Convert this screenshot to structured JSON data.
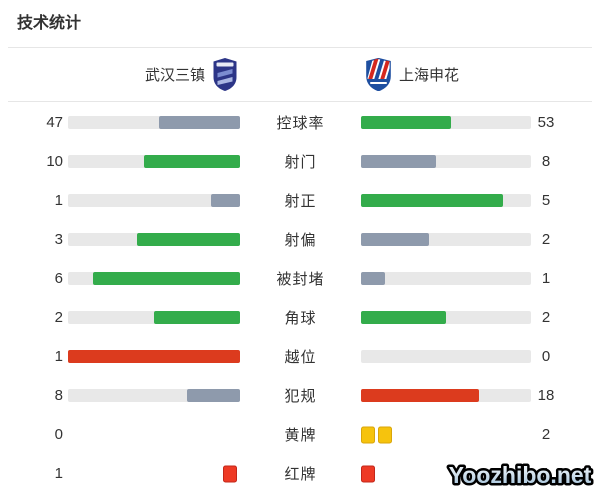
{
  "title": "技术统计",
  "teams": {
    "home": {
      "name": "武汉三镇",
      "logo_icon": "wuhan-three-towns-crest"
    },
    "away": {
      "name": "上海申花",
      "logo_icon": "shanghai-shenhua-crest"
    }
  },
  "colors": {
    "green": "#33ac4b",
    "gray": "#8e9aac",
    "red": "#dc3b1e",
    "track": "#e8e8e8",
    "yellow_card": "#f6c30d",
    "yellow_card_border": "#d9a50a",
    "red_card": "#ee3a25",
    "red_card_border": "#c2271a",
    "text": "#333333",
    "divider": "#e6e6e6"
  },
  "chart_data": {
    "type": "bar",
    "title": "技术统计",
    "categories": [
      "控球率",
      "射门",
      "射正",
      "射偏",
      "被封堵",
      "角球",
      "越位",
      "犯规",
      "黄牌",
      "红牌"
    ],
    "series": [
      {
        "name": "武汉三镇",
        "values": [
          47,
          10,
          1,
          3,
          6,
          2,
          1,
          8,
          0,
          1
        ]
      },
      {
        "name": "上海申花",
        "values": [
          53,
          8,
          5,
          2,
          1,
          2,
          0,
          18,
          2,
          1
        ]
      }
    ],
    "legend_position": "top",
    "grid": false,
    "notes": "paired horizontal bars growing outward from center; green = higher/better side, gray = lower side, red = negative stat leader, card rows use card icons"
  },
  "rows": [
    {
      "label": "控球率",
      "type": "bar",
      "home": {
        "value": "47",
        "pct": 47,
        "color": "gray"
      },
      "away": {
        "value": "53",
        "pct": 53,
        "color": "green"
      }
    },
    {
      "label": "射门",
      "type": "bar",
      "home": {
        "value": "10",
        "pct": 55.6,
        "color": "green"
      },
      "away": {
        "value": "8",
        "pct": 44.4,
        "color": "gray"
      }
    },
    {
      "label": "射正",
      "type": "bar",
      "home": {
        "value": "1",
        "pct": 16.7,
        "color": "gray"
      },
      "away": {
        "value": "5",
        "pct": 83.3,
        "color": "green"
      }
    },
    {
      "label": "射偏",
      "type": "bar",
      "home": {
        "value": "3",
        "pct": 60,
        "color": "green"
      },
      "away": {
        "value": "2",
        "pct": 40,
        "color": "gray"
      }
    },
    {
      "label": "被封堵",
      "type": "bar",
      "home": {
        "value": "6",
        "pct": 85.7,
        "color": "green"
      },
      "away": {
        "value": "1",
        "pct": 14.3,
        "color": "gray"
      }
    },
    {
      "label": "角球",
      "type": "bar",
      "home": {
        "value": "2",
        "pct": 50,
        "color": "green"
      },
      "away": {
        "value": "2",
        "pct": 50,
        "color": "green"
      }
    },
    {
      "label": "越位",
      "type": "bar",
      "home": {
        "value": "1",
        "pct": 100,
        "color": "red"
      },
      "away": {
        "value": "0",
        "pct": 0,
        "color": "none"
      }
    },
    {
      "label": "犯规",
      "type": "bar",
      "home": {
        "value": "8",
        "pct": 30.8,
        "color": "gray"
      },
      "away": {
        "value": "18",
        "pct": 69.2,
        "color": "red"
      }
    },
    {
      "label": "黄牌",
      "type": "cards",
      "home": {
        "value": "0",
        "cards": 0,
        "card_color": "yellow"
      },
      "away": {
        "value": "2",
        "cards": 2,
        "card_color": "yellow"
      }
    },
    {
      "label": "红牌",
      "type": "cards",
      "home": {
        "value": "1",
        "cards": 1,
        "card_color": "red"
      },
      "away": {
        "value": "1",
        "cards": 1,
        "card_color": "red"
      }
    }
  ],
  "watermark": {
    "text": "Yoozhibo.net"
  }
}
